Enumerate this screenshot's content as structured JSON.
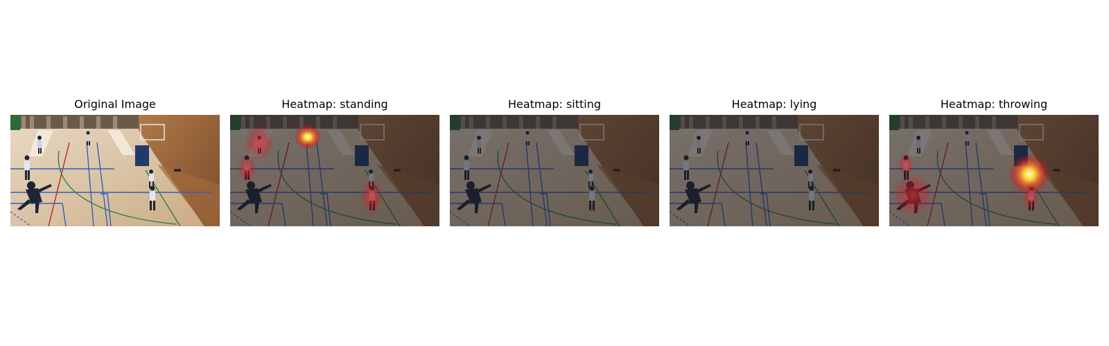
{
  "figure": {
    "panels": [
      {
        "id": "original",
        "title": "Original Image",
        "overlay": "none",
        "dimmed": false
      },
      {
        "id": "standing",
        "title": "Heatmap: standing",
        "overlay": "standing",
        "dimmed": true
      },
      {
        "id": "sitting",
        "title": "Heatmap: sitting",
        "overlay": "sitting",
        "dimmed": true
      },
      {
        "id": "lying",
        "title": "Heatmap: lying",
        "overlay": "lying",
        "dimmed": true
      },
      {
        "id": "throwing",
        "title": "Heatmap: throwing",
        "overlay": "throwing",
        "dimmed": true
      }
    ]
  },
  "colors": {
    "floor": "#d9c2a6",
    "wall": "#8a5a34",
    "court_blue": "#2f5fbf",
    "court_red": "#b3262a",
    "court_green": "#2e7d4a",
    "heat_hot": "#fff7a0",
    "heat_mid": "#ff6a2a",
    "heat_outer": "#e0101a"
  }
}
